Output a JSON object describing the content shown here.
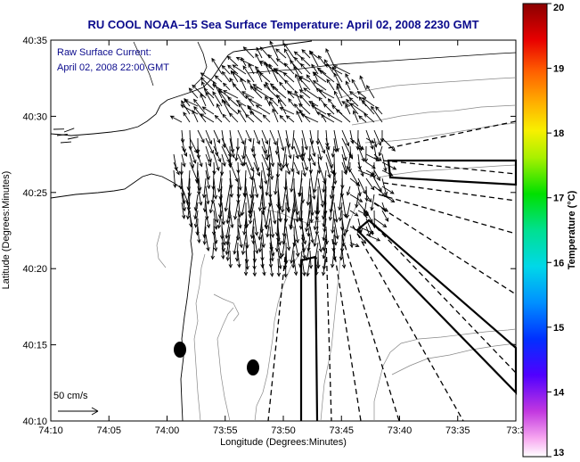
{
  "header": {
    "title": "RU COOL  NOAA–15  Sea Surface Temperature:  April 02, 2008 2230 GMT"
  },
  "annotation": {
    "line1": "Raw Surface Current:",
    "line2": "April 02, 2008 22:00 GMT"
  },
  "axes": {
    "xlabel": "Longitude (Degrees:Minutes)",
    "ylabel": "Latitude (Degrees:Minutes)",
    "xticks": [
      "74:10",
      "74:05",
      "74:00",
      "73:55",
      "73:50",
      "73:45",
      "73:40",
      "73:35",
      "73:3"
    ],
    "yticks": [
      "40:35",
      "40:30",
      "40:25",
      "40:20",
      "40:15",
      "40:10"
    ]
  },
  "scale": {
    "label": "50 cm/s"
  },
  "colorbar": {
    "label": "Temperature (°C)",
    "ticks": [
      "20",
      "19",
      "18",
      "17",
      "16",
      "15",
      "14",
      "13"
    ],
    "min": 13,
    "max": 20
  },
  "map_data": {
    "lon_range_minutes": [
      -74.1667,
      -73.5
    ],
    "lat_range": [
      40.1667,
      40.5833
    ],
    "current_arrow_count": 420,
    "markers": [
      "radar-site-1",
      "radar-site-2"
    ]
  }
}
